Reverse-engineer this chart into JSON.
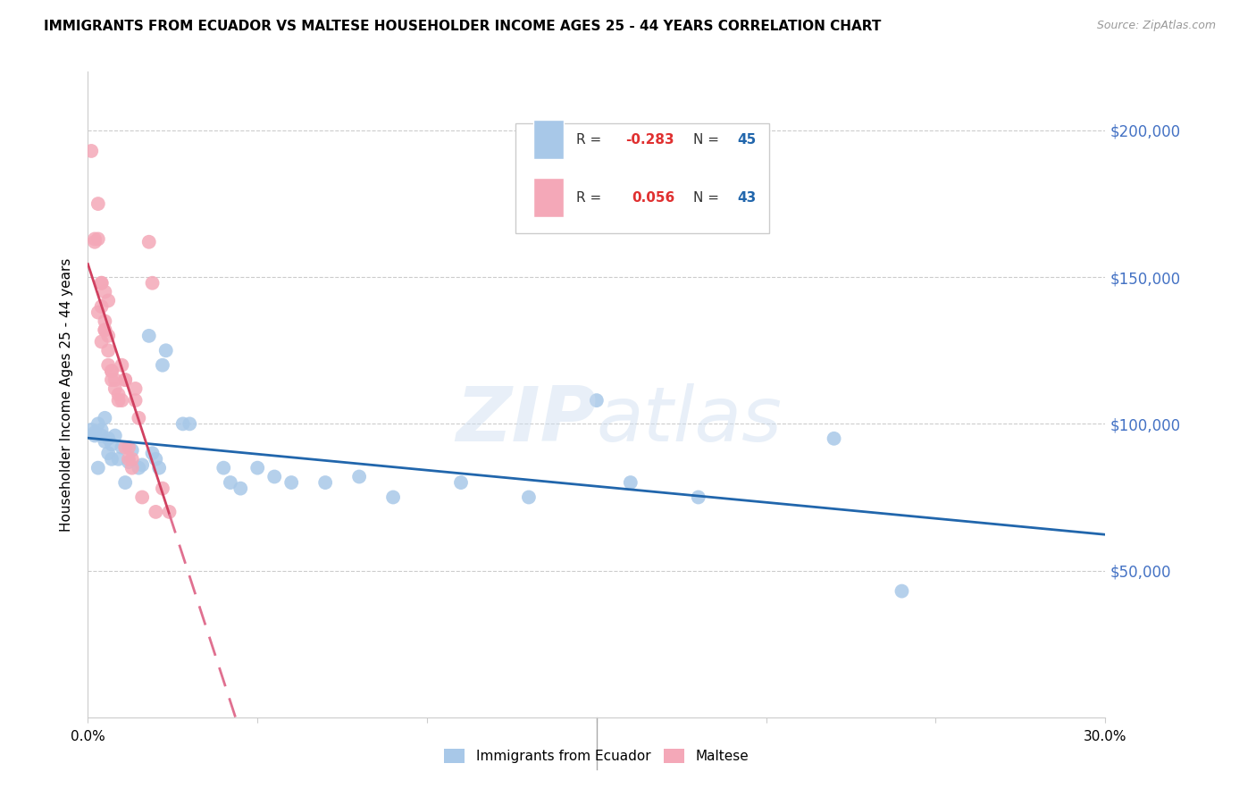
{
  "title": "IMMIGRANTS FROM ECUADOR VS MALTESE HOUSEHOLDER INCOME AGES 25 - 44 YEARS CORRELATION CHART",
  "source": "Source: ZipAtlas.com",
  "ylabel": "Householder Income Ages 25 - 44 years",
  "x_min": 0.0,
  "x_max": 0.3,
  "y_min": 0,
  "y_max": 220000,
  "y_ticks": [
    50000,
    100000,
    150000,
    200000
  ],
  "y_tick_labels": [
    "$50,000",
    "$100,000",
    "$150,000",
    "$200,000"
  ],
  "blue_color": "#a8c8e8",
  "pink_color": "#f4a8b8",
  "blue_line_color": "#2166ac",
  "pink_line_color": "#d04060",
  "pink_dashed_color": "#e07090",
  "watermark": "ZIPatlas",
  "blue_scatter": [
    [
      0.001,
      98000
    ],
    [
      0.002,
      96000
    ],
    [
      0.003,
      100000
    ],
    [
      0.004,
      98000
    ],
    [
      0.005,
      94000
    ],
    [
      0.006,
      95000
    ],
    [
      0.007,
      93000
    ],
    [
      0.002,
      97000
    ],
    [
      0.003,
      85000
    ],
    [
      0.004,
      96000
    ],
    [
      0.005,
      102000
    ],
    [
      0.006,
      90000
    ],
    [
      0.007,
      88000
    ],
    [
      0.008,
      96000
    ],
    [
      0.009,
      88000
    ],
    [
      0.01,
      92000
    ],
    [
      0.011,
      80000
    ],
    [
      0.012,
      87000
    ],
    [
      0.013,
      91000
    ],
    [
      0.015,
      85000
    ],
    [
      0.016,
      86000
    ],
    [
      0.018,
      130000
    ],
    [
      0.019,
      90000
    ],
    [
      0.02,
      88000
    ],
    [
      0.021,
      85000
    ],
    [
      0.022,
      120000
    ],
    [
      0.023,
      125000
    ],
    [
      0.028,
      100000
    ],
    [
      0.03,
      100000
    ],
    [
      0.04,
      85000
    ],
    [
      0.042,
      80000
    ],
    [
      0.045,
      78000
    ],
    [
      0.05,
      85000
    ],
    [
      0.055,
      82000
    ],
    [
      0.06,
      80000
    ],
    [
      0.07,
      80000
    ],
    [
      0.08,
      82000
    ],
    [
      0.09,
      75000
    ],
    [
      0.11,
      80000
    ],
    [
      0.13,
      75000
    ],
    [
      0.15,
      108000
    ],
    [
      0.16,
      80000
    ],
    [
      0.18,
      75000
    ],
    [
      0.22,
      95000
    ],
    [
      0.24,
      43000
    ]
  ],
  "pink_scatter": [
    [
      0.001,
      193000
    ],
    [
      0.003,
      175000
    ],
    [
      0.002,
      163000
    ],
    [
      0.003,
      163000
    ],
    [
      0.002,
      162000
    ],
    [
      0.004,
      148000
    ],
    [
      0.003,
      138000
    ],
    [
      0.004,
      148000
    ],
    [
      0.004,
      140000
    ],
    [
      0.005,
      132000
    ],
    [
      0.005,
      145000
    ],
    [
      0.005,
      135000
    ],
    [
      0.004,
      128000
    ],
    [
      0.006,
      142000
    ],
    [
      0.005,
      132000
    ],
    [
      0.006,
      125000
    ],
    [
      0.006,
      130000
    ],
    [
      0.006,
      120000
    ],
    [
      0.007,
      118000
    ],
    [
      0.007,
      118000
    ],
    [
      0.007,
      115000
    ],
    [
      0.008,
      115000
    ],
    [
      0.008,
      112000
    ],
    [
      0.009,
      110000
    ],
    [
      0.009,
      108000
    ],
    [
      0.01,
      108000
    ],
    [
      0.01,
      120000
    ],
    [
      0.011,
      115000
    ],
    [
      0.011,
      115000
    ],
    [
      0.011,
      92000
    ],
    [
      0.012,
      92000
    ],
    [
      0.012,
      88000
    ],
    [
      0.013,
      88000
    ],
    [
      0.013,
      85000
    ],
    [
      0.014,
      112000
    ],
    [
      0.014,
      108000
    ],
    [
      0.015,
      102000
    ],
    [
      0.016,
      75000
    ],
    [
      0.018,
      162000
    ],
    [
      0.019,
      148000
    ],
    [
      0.02,
      70000
    ],
    [
      0.022,
      78000
    ],
    [
      0.024,
      70000
    ]
  ]
}
